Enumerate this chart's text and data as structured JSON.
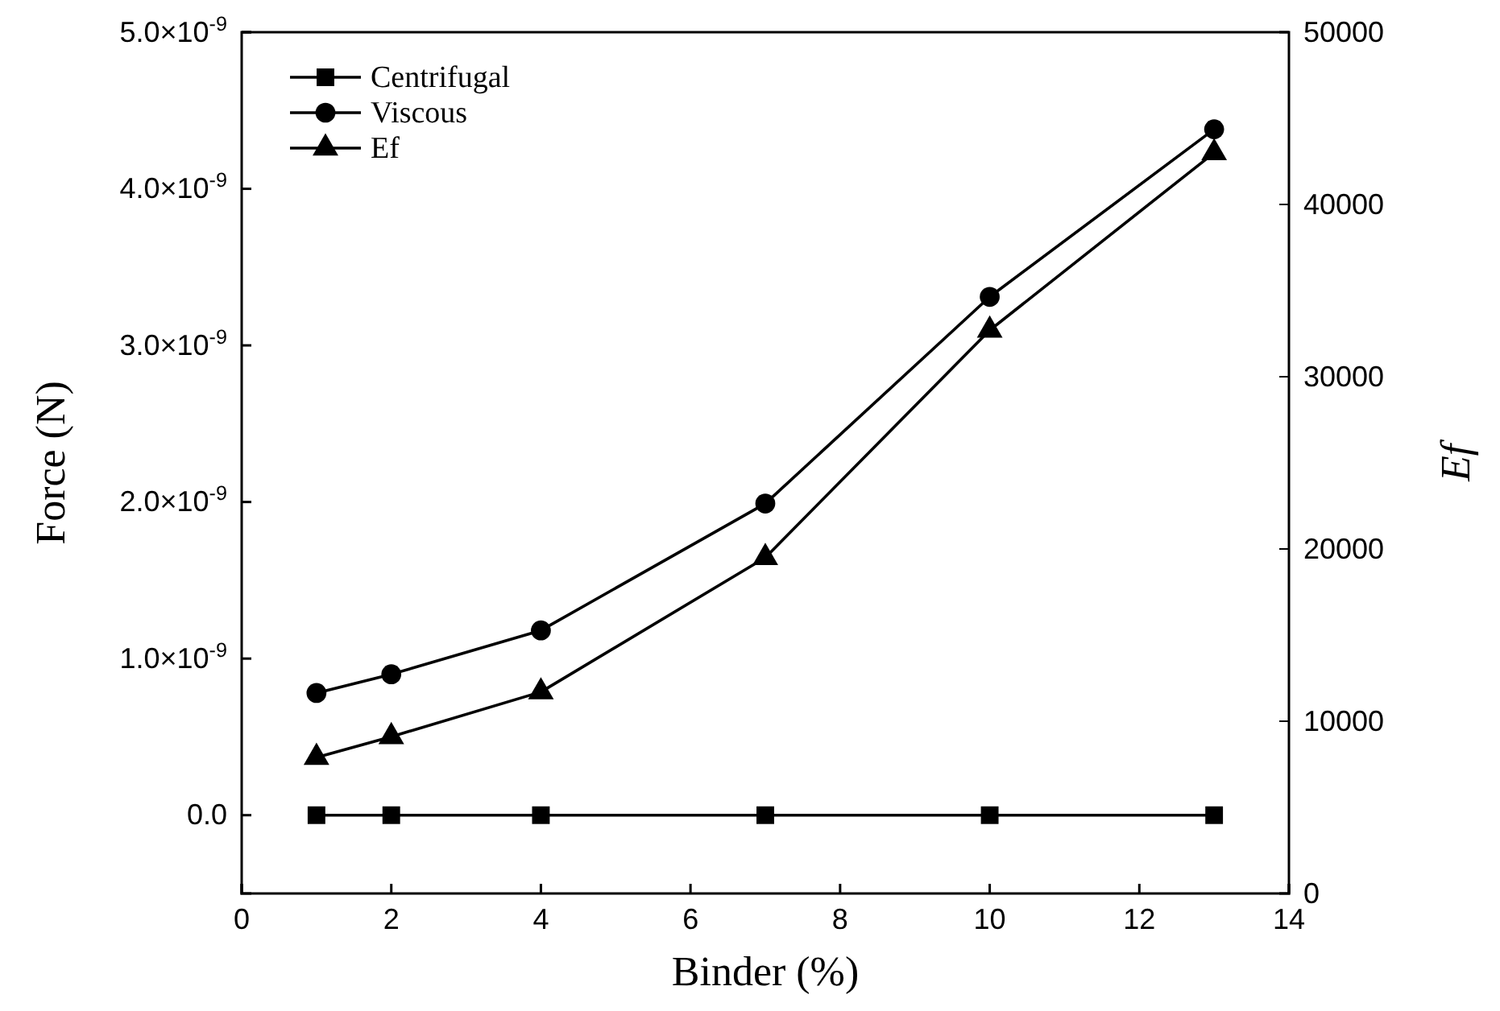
{
  "chart_data": {
    "type": "line",
    "xlabel": "Binder (%)",
    "ylabel": "Force (N)",
    "y2label": "Ef",
    "x": [
      1,
      2,
      4,
      7,
      10,
      13
    ],
    "xlim": [
      0,
      14
    ],
    "xticks": [
      0,
      2,
      4,
      6,
      8,
      10,
      12,
      14
    ],
    "ylim": [
      -5e-10,
      5e-09
    ],
    "yticks": [
      {
        "value": 0,
        "label": "0.0"
      },
      {
        "value": 1e-09,
        "label": "1.0×10$^{-9}$"
      },
      {
        "value": 2e-09,
        "label": "2.0×10$^{-9}$"
      },
      {
        "value": 3e-09,
        "label": "3.0×10$^{-9}$"
      },
      {
        "value": 4e-09,
        "label": "4.0×10$^{-9}$"
      },
      {
        "value": 5e-09,
        "label": "5.0×10$^{-9}$"
      }
    ],
    "y2lim": [
      0,
      50000
    ],
    "y2ticks": [
      0,
      10000,
      20000,
      30000,
      40000,
      50000
    ],
    "legend": "top left",
    "grid": false,
    "series": [
      {
        "name": "Centrifugal",
        "color": "#000000",
        "marker": "square",
        "values": [
          0,
          0,
          0,
          0,
          0,
          0
        ]
      },
      {
        "name": "Viscous",
        "color": "#000000",
        "marker": "circle",
        "values": [
          7.8e-10,
          9e-10,
          1.18e-09,
          1.99e-09,
          3.31e-09,
          4.38e-09
        ]
      },
      {
        "name": "Ef",
        "color": "#000000",
        "marker": "triangle",
        "axis": "y2",
        "values": [
          7900,
          9100,
          11700,
          19500,
          32700,
          43000
        ]
      }
    ]
  }
}
